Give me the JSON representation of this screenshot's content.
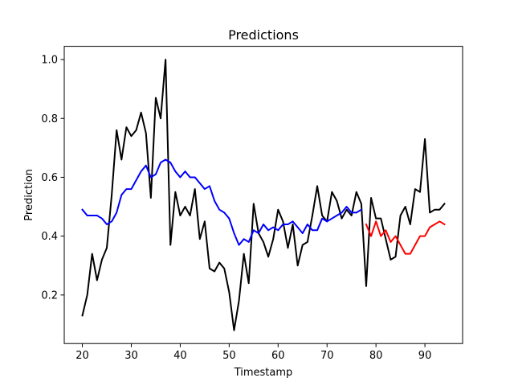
{
  "chart_data": {
    "type": "line",
    "title": "Predictions",
    "xlabel": "Timestamp",
    "ylabel": "Prediction",
    "xlim": [
      16.3,
      97.7
    ],
    "ylim": [
      0.035,
      1.045
    ],
    "xticks": [
      20,
      30,
      40,
      50,
      60,
      70,
      80,
      90
    ],
    "yticks": [
      0.2,
      0.4,
      0.6,
      0.8,
      1.0
    ],
    "xtick_labels": [
      "20",
      "30",
      "40",
      "50",
      "60",
      "70",
      "80",
      "90"
    ],
    "ytick_labels": [
      "0.2",
      "0.4",
      "0.6",
      "0.8",
      "1.0"
    ],
    "grid": false,
    "series": [
      {
        "color": "#000000",
        "x": [
          20,
          21,
          22,
          23,
          24,
          25,
          26,
          27,
          28,
          29,
          30,
          31,
          32,
          33,
          34,
          35,
          36,
          37,
          38,
          39,
          40,
          41,
          42,
          43,
          44,
          45,
          46,
          47,
          48,
          49,
          50,
          51,
          52,
          53,
          54,
          55,
          56,
          57,
          58,
          59,
          60,
          61,
          62,
          63,
          64,
          65,
          66,
          67,
          68,
          69,
          70,
          71,
          72,
          73,
          74,
          75,
          76,
          77,
          78,
          79,
          80,
          81,
          82,
          83,
          84,
          85,
          86,
          87,
          88,
          89,
          90,
          91,
          92,
          93,
          94
        ],
        "values": [
          0.13,
          0.2,
          0.34,
          0.25,
          0.32,
          0.36,
          0.54,
          0.76,
          0.66,
          0.77,
          0.74,
          0.76,
          0.82,
          0.75,
          0.53,
          0.87,
          0.8,
          1.0,
          0.37,
          0.55,
          0.47,
          0.5,
          0.47,
          0.56,
          0.39,
          0.45,
          0.29,
          0.28,
          0.31,
          0.29,
          0.21,
          0.08,
          0.18,
          0.34,
          0.24,
          0.51,
          0.41,
          0.38,
          0.33,
          0.39,
          0.49,
          0.45,
          0.36,
          0.44,
          0.3,
          0.37,
          0.38,
          0.47,
          0.57,
          0.47,
          0.45,
          0.55,
          0.52,
          0.46,
          0.49,
          0.47,
          0.55,
          0.51,
          0.23,
          0.53,
          0.46,
          0.46,
          0.39,
          0.32,
          0.33,
          0.47,
          0.5,
          0.44,
          0.56,
          0.55,
          0.73,
          0.48,
          0.49,
          0.49,
          0.51
        ]
      },
      {
        "color": "#0000ff",
        "x": [
          20,
          21,
          22,
          23,
          24,
          25,
          26,
          27,
          28,
          29,
          30,
          31,
          32,
          33,
          34,
          35,
          36,
          37,
          38,
          39,
          40,
          41,
          42,
          43,
          44,
          45,
          46,
          47,
          48,
          49,
          50,
          51,
          52,
          53,
          54,
          55,
          56,
          57,
          58,
          59,
          60,
          61,
          62,
          63,
          64,
          65,
          66,
          67,
          68,
          69,
          70,
          71,
          72,
          73,
          74,
          75,
          76,
          77
        ],
        "values": [
          0.49,
          0.47,
          0.47,
          0.47,
          0.46,
          0.44,
          0.45,
          0.48,
          0.54,
          0.56,
          0.56,
          0.59,
          0.62,
          0.64,
          0.6,
          0.61,
          0.65,
          0.66,
          0.65,
          0.62,
          0.6,
          0.62,
          0.6,
          0.6,
          0.58,
          0.56,
          0.57,
          0.52,
          0.49,
          0.48,
          0.46,
          0.41,
          0.37,
          0.39,
          0.38,
          0.42,
          0.41,
          0.44,
          0.42,
          0.43,
          0.42,
          0.44,
          0.44,
          0.45,
          0.43,
          0.41,
          0.44,
          0.42,
          0.42,
          0.46,
          0.45,
          0.46,
          0.47,
          0.48,
          0.5,
          0.48,
          0.48,
          0.49
        ]
      },
      {
        "color": "#ff0000",
        "x": [
          78,
          79,
          80,
          81,
          82,
          83,
          84,
          85,
          86,
          87,
          88,
          89,
          90,
          91,
          92,
          93,
          94
        ],
        "values": [
          0.44,
          0.4,
          0.45,
          0.4,
          0.42,
          0.38,
          0.4,
          0.37,
          0.34,
          0.34,
          0.37,
          0.4,
          0.4,
          0.43,
          0.44,
          0.45,
          0.44
        ]
      }
    ]
  }
}
